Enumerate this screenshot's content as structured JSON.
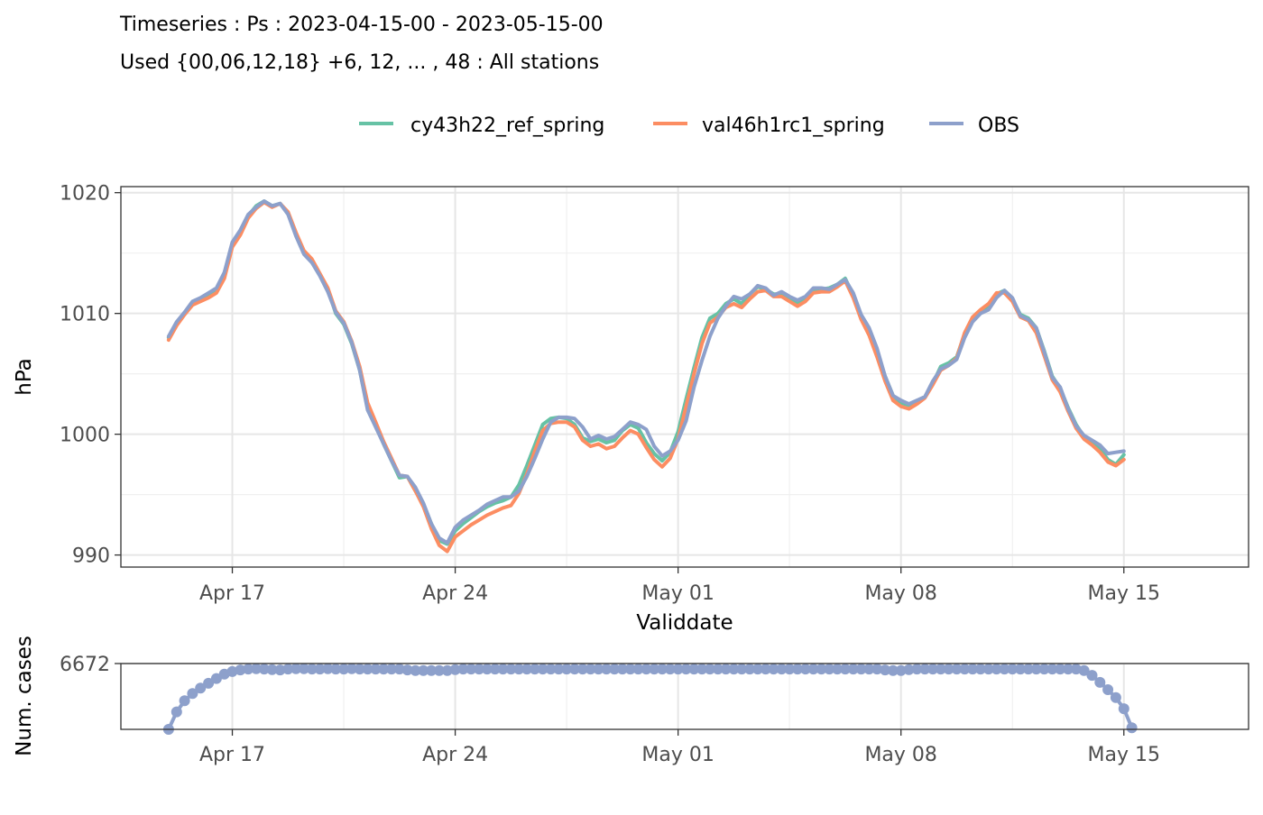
{
  "title": "Timeseries : Ps : 2023-04-15-00 - 2023-05-15-00",
  "subtitle": "Used {00,06,12,18} +6, 12, ... , 48 : All stations",
  "legend": [
    {
      "name": "cy43h22_ref_spring",
      "color": "#66c2a5"
    },
    {
      "name": "val46h1rc1_spring",
      "color": "#fc8d62"
    },
    {
      "name": "OBS",
      "color": "#8da0cb"
    }
  ],
  "chart_data": [
    {
      "type": "line",
      "xlabel": "Validdate",
      "ylabel": "hPa",
      "x_ticks": [
        "Apr 17",
        "Apr 24",
        "May 01",
        "May 08",
        "May 15"
      ],
      "y_ticks": [
        "990",
        "1000",
        "1010",
        "1020"
      ],
      "xlim": [
        "2023-04-13 12:00",
        "2023-05-18 22:00"
      ],
      "ylim": [
        989,
        1020.5
      ],
      "grid": true,
      "legend_position": "top",
      "x_start": "2023-04-15 00:00",
      "x_step_hours": 6,
      "series": [
        {
          "name": "cy43h22_ref_spring",
          "color": "#66c2a5",
          "values": [
            1008.0,
            1009.2,
            1010.0,
            1010.9,
            1011.2,
            1011.5,
            1012.0,
            1013.2,
            1015.8,
            1016.8,
            1018.1,
            1018.9,
            1019.3,
            1018.9,
            1019.1,
            1018.3,
            1016.5,
            1015.0,
            1014.4,
            1013.2,
            1012.0,
            1010.0,
            1009.1,
            1007.5,
            1005.3,
            1002.2,
            1000.8,
            999.2,
            997.8,
            996.4,
            996.5,
            995.3,
            994.2,
            992.6,
            991.2,
            990.9,
            992.0,
            992.6,
            993.1,
            993.6,
            994.0,
            994.3,
            994.5,
            994.8,
            995.8,
            997.4,
            999.1,
            1000.8,
            1001.3,
            1001.4,
            1001.3,
            1000.8,
            999.7,
            999.4,
            999.6,
            999.3,
            999.5,
            1000.3,
            1000.8,
            1000.5,
            999.3,
            998.4,
            997.8,
            998.5,
            1000.2,
            1002.9,
            1005.5,
            1008.0,
            1009.6,
            1010.0,
            1010.8,
            1011.2,
            1010.8,
            1011.6,
            1012.2,
            1012.0,
            1011.6,
            1011.6,
            1011.3,
            1010.9,
            1011.2,
            1012.0,
            1012.0,
            1012.1,
            1012.4,
            1012.9,
            1011.5,
            1009.8,
            1008.6,
            1006.8,
            1004.8,
            1003.2,
            1002.6,
            1002.4,
            1002.7,
            1003.1,
            1004.2,
            1005.6,
            1005.9,
            1006.4,
            1008.3,
            1009.5,
            1010.1,
            1010.7,
            1011.6,
            1011.9,
            1011.2,
            1009.9,
            1009.6,
            1008.8,
            1006.9,
            1004.8,
            1003.8,
            1002.2,
            1000.8,
            999.8,
            999.3,
            998.8,
            997.9,
            997.5,
            998.3
          ]
        },
        {
          "name": "val46h1rc1_spring",
          "color": "#fc8d62",
          "values": [
            1007.8,
            1009.0,
            1009.9,
            1010.7,
            1011.0,
            1011.3,
            1011.7,
            1012.9,
            1015.5,
            1016.5,
            1017.9,
            1018.7,
            1019.2,
            1018.8,
            1019.1,
            1018.4,
            1016.7,
            1015.2,
            1014.5,
            1013.3,
            1012.1,
            1010.2,
            1009.3,
            1007.7,
            1005.6,
            1002.6,
            1001.0,
            999.4,
            998.0,
            996.6,
            996.5,
            995.3,
            994.0,
            992.2,
            990.8,
            990.3,
            991.5,
            992.0,
            992.5,
            992.9,
            993.3,
            993.6,
            993.9,
            994.1,
            995.1,
            996.7,
            998.6,
            1000.3,
            1000.9,
            1001.0,
            1001.0,
            1000.6,
            999.5,
            999.0,
            999.2,
            998.8,
            999.0,
            999.7,
            1000.3,
            1000.0,
            998.9,
            997.9,
            997.3,
            998.0,
            999.6,
            1002.3,
            1005.0,
            1007.5,
            1009.2,
            1009.7,
            1010.5,
            1010.8,
            1010.5,
            1011.2,
            1011.8,
            1011.9,
            1011.4,
            1011.4,
            1011.0,
            1010.6,
            1011.0,
            1011.7,
            1011.8,
            1011.8,
            1012.2,
            1012.7,
            1011.3,
            1009.5,
            1008.2,
            1006.4,
            1004.4,
            1002.8,
            1002.3,
            1002.1,
            1002.5,
            1003.0,
            1004.1,
            1005.3,
            1005.7,
            1006.3,
            1008.4,
            1009.7,
            1010.3,
            1010.8,
            1011.7,
            1011.7,
            1011.0,
            1009.7,
            1009.4,
            1008.4,
            1006.5,
            1004.5,
            1003.5,
            1001.9,
            1000.5,
            999.6,
            999.1,
            998.5,
            997.7,
            997.4,
            997.9
          ]
        },
        {
          "name": "OBS",
          "color": "#8da0cb",
          "values": [
            1008.1,
            1009.3,
            1010.1,
            1011.0,
            1011.3,
            1011.7,
            1012.1,
            1013.4,
            1015.9,
            1016.9,
            1018.2,
            1018.8,
            1019.3,
            1018.9,
            1019.1,
            1018.2,
            1016.4,
            1014.9,
            1014.2,
            1013.1,
            1011.8,
            1010.1,
            1009.2,
            1007.6,
            1005.3,
            1002.0,
            1000.6,
            999.2,
            997.8,
            996.6,
            996.5,
            995.6,
            994.3,
            992.6,
            991.4,
            991.0,
            992.3,
            992.9,
            993.3,
            993.7,
            994.2,
            994.5,
            994.8,
            994.8,
            995.3,
            996.5,
            998.0,
            999.6,
            1001.0,
            1001.4,
            1001.4,
            1001.3,
            1000.6,
            999.6,
            999.9,
            999.6,
            999.8,
            1000.4,
            1001.0,
            1000.8,
            1000.4,
            999.0,
            998.2,
            998.6,
            999.5,
            1001.1,
            1003.9,
            1006.1,
            1008.1,
            1009.6,
            1010.6,
            1011.4,
            1011.2,
            1011.6,
            1012.3,
            1012.1,
            1011.5,
            1011.8,
            1011.4,
            1011.1,
            1011.4,
            1012.1,
            1012.1,
            1012.0,
            1012.4,
            1012.8,
            1011.7,
            1009.9,
            1008.8,
            1007.1,
            1004.8,
            1003.2,
            1002.8,
            1002.5,
            1002.8,
            1003.1,
            1004.4,
            1005.4,
            1005.7,
            1006.2,
            1008.0,
            1009.3,
            1010.0,
            1010.3,
            1011.3,
            1011.9,
            1011.3,
            1009.8,
            1009.5,
            1008.8,
            1006.8,
            1004.7,
            1003.9,
            1002.1,
            1000.7,
            999.9,
            999.5,
            999.1,
            998.4,
            998.5,
            998.6
          ]
        }
      ]
    },
    {
      "type": "line",
      "ylabel": "Num. cases",
      "x_ticks": [
        "Apr 17",
        "Apr 24",
        "May 01",
        "May 08",
        "May 15"
      ],
      "y_ticks": [
        "6672"
      ],
      "ylim": [
        4600,
        6672
      ],
      "grid": true,
      "x_start": "2023-04-15 00:00",
      "x_step_hours": 6,
      "markers": true,
      "series": [
        {
          "name": "OBS",
          "color": "#8da0cb",
          "values": [
            4600,
            5150,
            5500,
            5730,
            5900,
            6050,
            6200,
            6340,
            6420,
            6470,
            6500,
            6510,
            6500,
            6480,
            6470,
            6500,
            6510,
            6510,
            6500,
            6500,
            6510,
            6500,
            6500,
            6510,
            6500,
            6500,
            6500,
            6500,
            6500,
            6500,
            6470,
            6450,
            6450,
            6450,
            6450,
            6450,
            6480,
            6500,
            6500,
            6500,
            6500,
            6500,
            6500,
            6500,
            6500,
            6500,
            6500,
            6500,
            6500,
            6500,
            6500,
            6500,
            6500,
            6500,
            6500,
            6500,
            6500,
            6500,
            6500,
            6500,
            6500,
            6500,
            6500,
            6500,
            6500,
            6500,
            6500,
            6500,
            6500,
            6500,
            6500,
            6500,
            6500,
            6500,
            6500,
            6500,
            6500,
            6500,
            6500,
            6500,
            6500,
            6500,
            6500,
            6500,
            6500,
            6500,
            6500,
            6500,
            6500,
            6500,
            6470,
            6450,
            6450,
            6480,
            6500,
            6500,
            6500,
            6500,
            6500,
            6500,
            6500,
            6500,
            6500,
            6500,
            6500,
            6500,
            6500,
            6500,
            6500,
            6500,
            6500,
            6500,
            6500,
            6500,
            6500,
            6450,
            6300,
            6080,
            5850,
            5600,
            5250,
            4650
          ]
        }
      ]
    }
  ]
}
